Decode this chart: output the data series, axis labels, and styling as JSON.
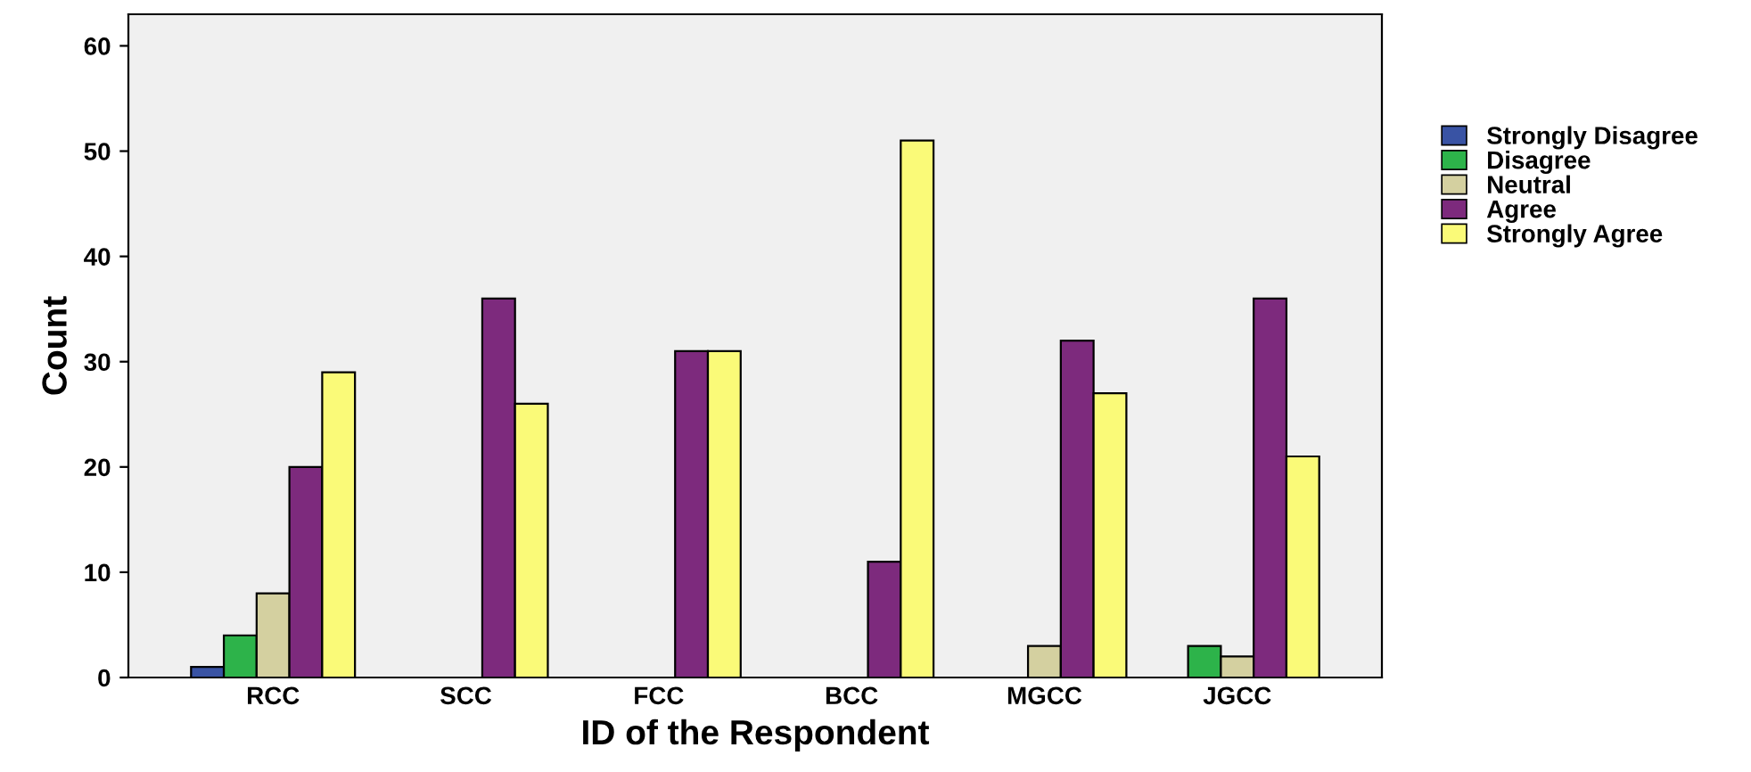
{
  "chart_data": {
    "type": "bar",
    "xlabel": "ID of the Respondent",
    "ylabel": "Count",
    "categories": [
      "RCC",
      "SCC",
      "FCC",
      "BCC",
      "MGCC",
      "JGCC"
    ],
    "series": [
      {
        "name": "Strongly Disagree",
        "color": "#3953a4",
        "values": [
          1,
          null,
          null,
          null,
          null,
          null
        ]
      },
      {
        "name": "Disagree",
        "color": "#2db34a",
        "values": [
          4,
          null,
          null,
          null,
          null,
          3
        ]
      },
      {
        "name": "Neutral",
        "color": "#d4d0a0",
        "values": [
          8,
          null,
          null,
          null,
          3,
          2
        ]
      },
      {
        "name": "Agree",
        "color": "#7d2a7d",
        "values": [
          20,
          36,
          31,
          11,
          32,
          36
        ]
      },
      {
        "name": "Strongly Agree",
        "color": "#fafa78",
        "values": [
          29,
          26,
          31,
          51,
          27,
          21
        ]
      }
    ],
    "ylim": [
      0,
      63
    ],
    "yticks": [
      0,
      10,
      20,
      30,
      40,
      50,
      60
    ],
    "grid": false,
    "legend": "right"
  }
}
